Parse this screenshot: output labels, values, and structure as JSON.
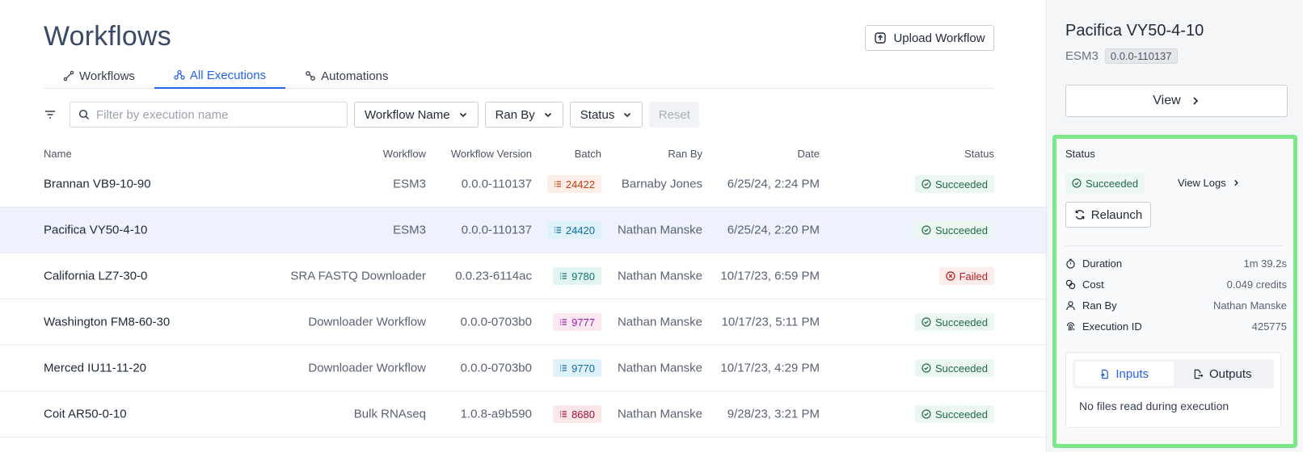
{
  "page": {
    "title": "Workflows"
  },
  "toolbar": {
    "upload_label": "Upload Workflow"
  },
  "tabs": [
    {
      "label": "Workflows",
      "active": false
    },
    {
      "label": "All Executions",
      "active": true
    },
    {
      "label": "Automations",
      "active": false
    }
  ],
  "filters": {
    "search_placeholder": "Filter by execution name",
    "workflow_name": "Workflow Name",
    "ran_by": "Ran By",
    "status": "Status",
    "reset": "Reset"
  },
  "table": {
    "headers": {
      "name": "Name",
      "workflow": "Workflow",
      "version": "Workflow Version",
      "batch": "Batch",
      "ran_by": "Ran By",
      "date": "Date",
      "status": "Status"
    },
    "rows": [
      {
        "name": "Brannan VB9-10-90",
        "workflow": "ESM3",
        "version": "0.0.0-110137",
        "batch": "24422",
        "batch_bg": "#fdeee7",
        "batch_fg": "#c2410c",
        "ran_by": "Barnaby Jones",
        "date": "6/25/24, 2:24 PM",
        "status": "Succeeded",
        "status_kind": "ok",
        "selected": false
      },
      {
        "name": "Pacifica VY50-4-10",
        "workflow": "ESM3",
        "version": "0.0.0-110137",
        "batch": "24420",
        "batch_bg": "#dff1fb",
        "batch_fg": "#0b6fa4",
        "ran_by": "Nathan Manske",
        "date": "6/25/24, 2:20 PM",
        "status": "Succeeded",
        "status_kind": "ok",
        "selected": true
      },
      {
        "name": "California LZ7-30-0",
        "workflow": "SRA FASTQ Downloader",
        "version": "0.0.23-6114ac",
        "batch": "9780",
        "batch_bg": "#e2f5f3",
        "batch_fg": "#0f766e",
        "ran_by": "Nathan Manske",
        "date": "10/17/23, 6:59 PM",
        "status": "Failed",
        "status_kind": "fail",
        "selected": false
      },
      {
        "name": "Washington FM8-60-30",
        "workflow": "Downloader Workflow",
        "version": "0.0.0-0703b0",
        "batch": "9777",
        "batch_bg": "#fbe8f3",
        "batch_fg": "#a21caf",
        "ran_by": "Nathan Manske",
        "date": "10/17/23, 5:11 PM",
        "status": "Succeeded",
        "status_kind": "ok",
        "selected": false
      },
      {
        "name": "Merced IU11-11-20",
        "workflow": "Downloader Workflow",
        "version": "0.0.0-0703b0",
        "batch": "9770",
        "batch_bg": "#dff1fb",
        "batch_fg": "#0b6fa4",
        "ran_by": "Nathan Manske",
        "date": "10/17/23, 4:29 PM",
        "status": "Succeeded",
        "status_kind": "ok",
        "selected": false
      },
      {
        "name": "Coit AR50-0-10",
        "workflow": "Bulk RNAseq",
        "version": "1.0.8-a9b590",
        "batch": "8680",
        "batch_bg": "#fbe6e8",
        "batch_fg": "#9f1239",
        "ran_by": "Nathan Manske",
        "date": "9/28/23, 3:21 PM",
        "status": "Succeeded",
        "status_kind": "ok",
        "selected": false
      }
    ]
  },
  "side": {
    "title": "Pacifica VY50-4-10",
    "workflow": "ESM3",
    "version": "0.0.0-110137",
    "view_label": "View",
    "status_label": "Status",
    "status_value": "Succeeded",
    "view_logs": "View Logs",
    "relaunch": "Relaunch",
    "details": [
      {
        "icon": "timer-icon",
        "label": "Duration",
        "value": "1m 39.2s"
      },
      {
        "icon": "coins-icon",
        "label": "Cost",
        "value": "0.049 credits"
      },
      {
        "icon": "user-icon",
        "label": "Ran By",
        "value": "Nathan Manske"
      },
      {
        "icon": "fingerprint-icon",
        "label": "Execution ID",
        "value": "425775"
      }
    ],
    "io": {
      "inputs_label": "Inputs",
      "outputs_label": "Outputs",
      "message": "No files read during execution"
    }
  },
  "colors": {
    "accent": "#2563eb",
    "highlight_border": "#7de88a",
    "success_bg": "#ecf7f1",
    "failed_bg": "#fdecec"
  }
}
